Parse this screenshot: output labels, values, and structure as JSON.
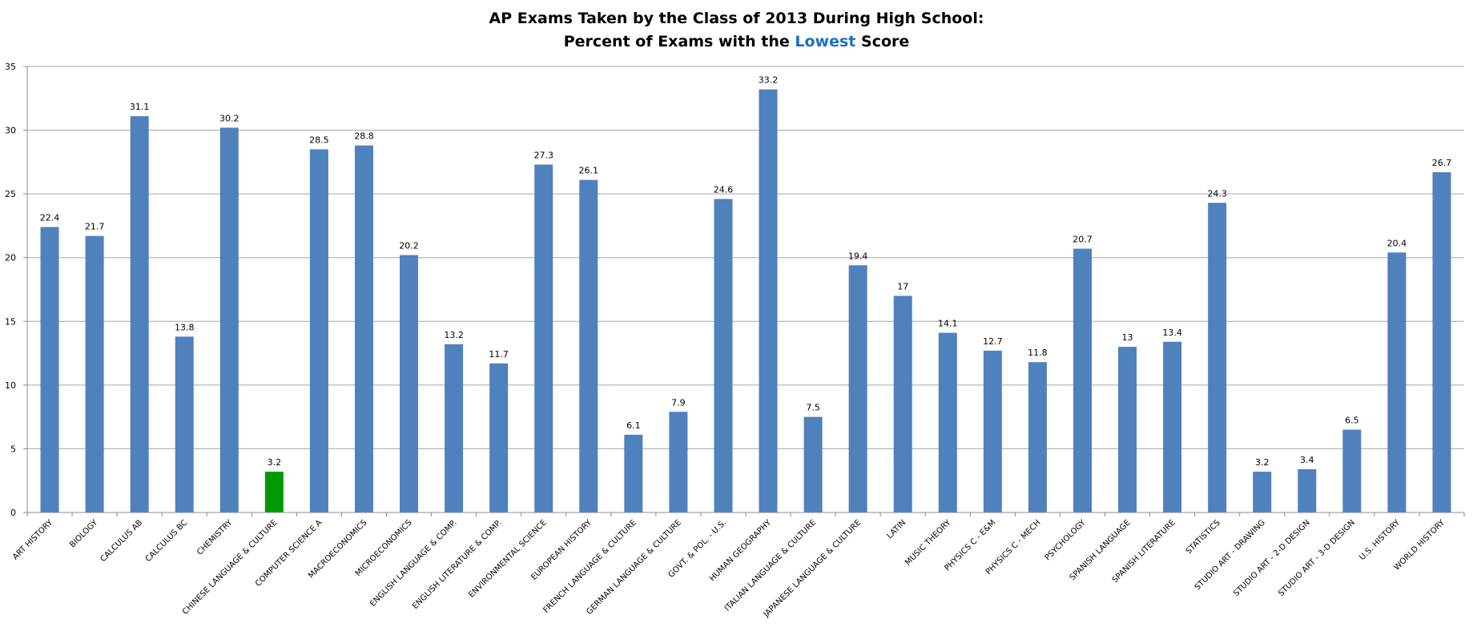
{
  "title": {
    "line1": "AP Exams Taken by the Class of 2013 During High School:",
    "line2_prefix": "Percent  of Exams with the ",
    "line2_highlight": "Lowest",
    "line2_suffix": " Score"
  },
  "colors": {
    "bar": "#4f81bd",
    "highlight_bar": "#009900",
    "gridline": "#a6a6a6",
    "axis": "#8c8c8c",
    "title_highlight": "#1f6fc1"
  },
  "chart_data": {
    "type": "bar",
    "title": "AP Exams Taken by the Class of 2013 During High School: Percent  of Exams with the Lowest Score",
    "xlabel": "",
    "ylabel": "",
    "ylim": [
      0,
      35
    ],
    "yticks": [
      0,
      5,
      10,
      15,
      20,
      25,
      30,
      35
    ],
    "grid": true,
    "legend": "none",
    "highlight_index": 5,
    "categories": [
      "ART HISTORY",
      "BIOLOGY",
      "CALCULUS AB",
      "CALCULUS BC",
      "CHEMISTRY",
      "CHINESE LANGUAGE & CULTURE",
      "COMPUTER SCIENCE A",
      "MACROECONOMICS",
      "MICROECONOMICS",
      "ENGLISH LANGUAGE & COMP.",
      "ENGLISH LITERATURE & COMP.",
      "ENVIRONMENTAL  SCIENCE",
      "EUROPEAN HISTORY",
      "FRENCH LANGUAGE & CULTURE",
      "GERMAN LANGUAGE & CULTURE",
      "GOVT. & POL. - U.S.",
      "HUMAN GEOGRAPHY",
      "ITALIAN LANGUAGE & CULTURE",
      "JAPANESE LANGUAGE & CULTURE",
      "LATIN",
      "MUSIC THEORY",
      "PHYSICS C - E&M",
      "PHYSICS C - MECH",
      "PSYCHOLOGY",
      "SPANISH LANGUAGE",
      "SPANISH LITERATURE",
      "STATISTICS",
      "STUDIO ART - DRAWING",
      "STUDIO ART - 2-D DESIGN",
      "STUDIO ART - 3-D DESIGN",
      "U.S. HISTORY",
      "WORLD HISTORY"
    ],
    "values": [
      22.4,
      21.7,
      31.1,
      13.8,
      30.2,
      3.2,
      28.5,
      28.8,
      20.2,
      13.2,
      11.7,
      27.3,
      26.1,
      6.1,
      7.9,
      24.6,
      33.2,
      7.5,
      19.4,
      17,
      14.1,
      12.7,
      11.8,
      20.7,
      13,
      13.4,
      24.3,
      3.2,
      3.4,
      6.5,
      20.4,
      26.7
    ]
  }
}
